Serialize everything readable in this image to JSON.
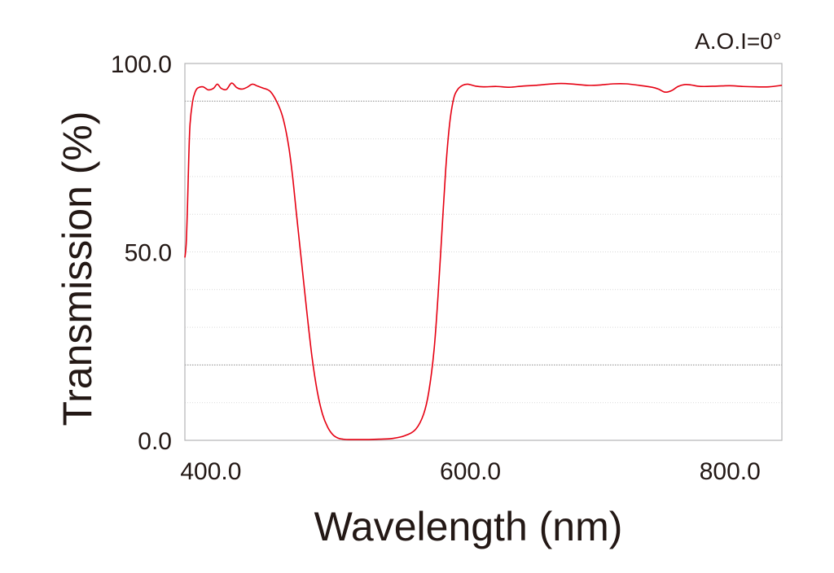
{
  "chart_data": {
    "type": "line",
    "annotation": "A.O.I=0°",
    "xlabel": "Wavelength (nm)",
    "ylabel": "Transmission (%)",
    "xlim": [
      380,
      840
    ],
    "ylim": [
      0,
      100
    ],
    "x_ticks": [
      {
        "value": 400,
        "label": "400.0"
      },
      {
        "value": 600,
        "label": "600.0"
      },
      {
        "value": 800,
        "label": "800.0"
      }
    ],
    "y_ticks": [
      {
        "value": 0,
        "label": "0.0"
      },
      {
        "value": 50,
        "label": "50.0"
      },
      {
        "value": 100,
        "label": "100.0"
      }
    ],
    "grid": true,
    "gridlines_y": [
      10,
      20,
      30,
      40,
      50,
      60,
      70,
      80,
      90
    ],
    "emphasized_gridlines_y": [
      20,
      90
    ],
    "line_color": "#e60012",
    "series": [
      {
        "x": [
          380,
          381,
          382,
          383,
          384,
          386,
          388,
          390,
          394,
          398,
          402,
          405,
          408,
          412,
          416,
          420,
          424,
          428,
          432,
          436,
          440,
          446,
          452,
          456,
          460,
          463,
          466,
          470,
          474,
          478,
          482,
          486,
          490,
          494,
          498,
          502,
          506,
          510,
          516,
          522,
          530,
          540,
          550,
          558,
          564,
          568,
          572,
          575,
          578,
          581,
          584,
          587,
          590,
          594,
          598,
          604,
          610,
          620,
          630,
          640,
          650,
          660,
          670,
          680,
          690,
          700,
          710,
          720,
          730,
          740,
          745,
          750,
          755,
          760,
          765,
          770,
          775,
          780,
          790,
          800,
          810,
          820,
          830,
          840
        ],
        "y": [
          48.5,
          52,
          62,
          75,
          84,
          90,
          92.5,
          93.5,
          93.8,
          93,
          93.4,
          94.5,
          93.4,
          93.1,
          94.8,
          93.6,
          93.2,
          93.7,
          94.5,
          94,
          93.5,
          92.5,
          89,
          85,
          78,
          70,
          60,
          47,
          34,
          22,
          13,
          7,
          3.5,
          1.5,
          0.6,
          0.3,
          0.2,
          0.2,
          0.2,
          0.2,
          0.3,
          0.5,
          1.3,
          3,
          7,
          13,
          24,
          38,
          55,
          72,
          84,
          90.5,
          93,
          94.2,
          94.5,
          94,
          93.8,
          93.9,
          93.7,
          94,
          94.2,
          94.5,
          94.7,
          94.5,
          94.2,
          94.3,
          94.6,
          94.6,
          94.2,
          93.7,
          93.2,
          92.4,
          92.8,
          93.9,
          94.4,
          94.3,
          94,
          93.9,
          94,
          94.1,
          93.9,
          93.8,
          93.8,
          94.2
        ]
      }
    ]
  }
}
